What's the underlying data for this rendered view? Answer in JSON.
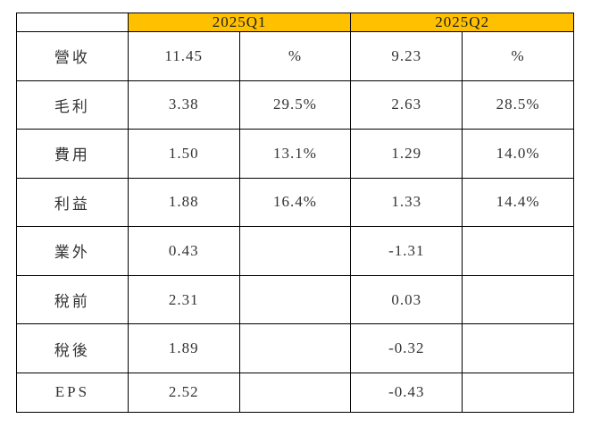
{
  "table": {
    "style": {
      "header_bg": "#FFC000",
      "border_color": "#000000",
      "text_color": "#333333",
      "page_bg": "#ffffff"
    },
    "header": {
      "corner_label": "",
      "groups": [
        {
          "label": "2025Q1"
        },
        {
          "label": "2025Q2"
        }
      ]
    },
    "rows": [
      {
        "label": "營收",
        "q1_value": "11.45",
        "q1_pct": "%",
        "q2_value": "9.23",
        "q2_pct": "%"
      },
      {
        "label": "毛利",
        "q1_value": "3.38",
        "q1_pct": "29.5%",
        "q2_value": "2.63",
        "q2_pct": "28.5%"
      },
      {
        "label": "費用",
        "q1_value": "1.50",
        "q1_pct": "13.1%",
        "q2_value": "1.29",
        "q2_pct": "14.0%"
      },
      {
        "label": "利益",
        "q1_value": "1.88",
        "q1_pct": "16.4%",
        "q2_value": "1.33",
        "q2_pct": "14.4%"
      },
      {
        "label": "業外",
        "q1_value": "0.43",
        "q1_pct": "",
        "q2_value": "-1.31",
        "q2_pct": ""
      },
      {
        "label": "稅前",
        "q1_value": "2.31",
        "q1_pct": "",
        "q2_value": "0.03",
        "q2_pct": ""
      },
      {
        "label": "稅後",
        "q1_value": "1.89",
        "q1_pct": "",
        "q2_value": "-0.32",
        "q2_pct": ""
      },
      {
        "label": "EPS",
        "q1_value": "2.52",
        "q1_pct": "",
        "q2_value": "-0.43",
        "q2_pct": ""
      }
    ]
  },
  "chart_data": {
    "type": "table",
    "title": "",
    "header_groups": [
      {
        "label": "2025Q1",
        "span": 2
      },
      {
        "label": "2025Q2",
        "span": 2
      }
    ],
    "columns": [
      "",
      "2025Q1 value",
      "2025Q1 %",
      "2025Q2 value",
      "2025Q2 %"
    ],
    "rows": [
      [
        "營收",
        11.45,
        "%",
        9.23,
        "%"
      ],
      [
        "毛利",
        3.38,
        "29.5%",
        2.63,
        "28.5%"
      ],
      [
        "費用",
        1.5,
        "13.1%",
        1.29,
        "14.0%"
      ],
      [
        "利益",
        1.88,
        "16.4%",
        1.33,
        "14.4%"
      ],
      [
        "業外",
        0.43,
        "",
        -1.31,
        ""
      ],
      [
        "稅前",
        2.31,
        "",
        0.03,
        ""
      ],
      [
        "稅後",
        1.89,
        "",
        -0.32,
        ""
      ],
      [
        "EPS",
        2.52,
        "",
        -0.43,
        ""
      ]
    ],
    "grid": true,
    "legend_position": "none"
  }
}
